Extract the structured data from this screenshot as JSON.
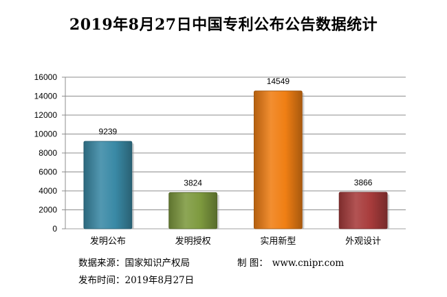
{
  "chart_data": {
    "type": "bar",
    "title": "2019年8月27日中国专利公布公告数据统计",
    "categories": [
      "发明公布",
      "发明授权",
      "实用新型",
      "外观设计"
    ],
    "values": [
      9239,
      3824,
      14549,
      3866
    ],
    "colors": [
      "#3a8aa6",
      "#7e9a3f",
      "#f07f14",
      "#a83c3c"
    ],
    "ylim": [
      0,
      16000
    ],
    "yticks": [
      0,
      2000,
      4000,
      6000,
      8000,
      10000,
      12000,
      14000,
      16000
    ],
    "grid": true,
    "legend": "none",
    "xlabel": "",
    "ylabel": ""
  },
  "footer": {
    "source_label": "数据来源：",
    "source_value": "国家知识产权局",
    "maker_label": "制 图：",
    "maker_value": "www.cnipr.com",
    "date_label": "发布时间：",
    "date_value": "2019年8月27日"
  }
}
